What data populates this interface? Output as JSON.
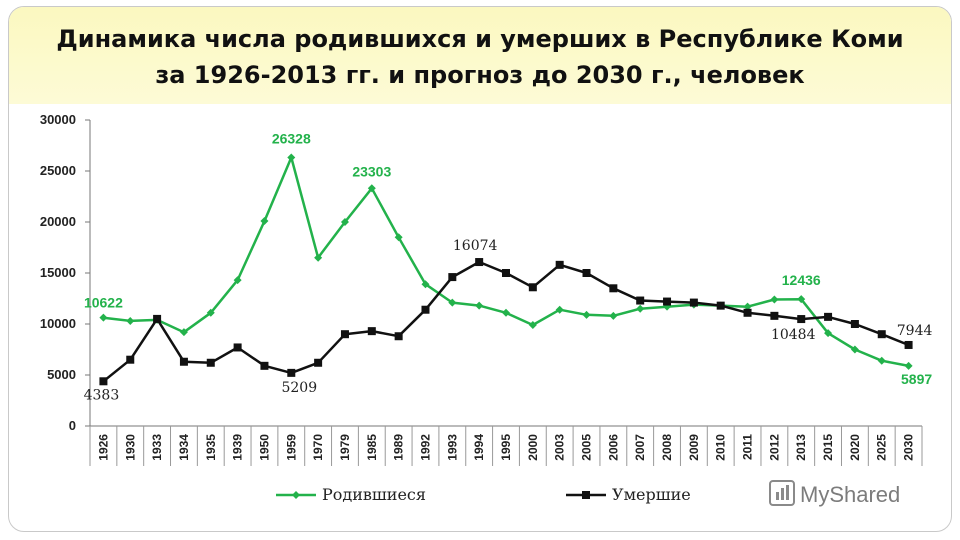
{
  "title": {
    "line1": "Динамика числа родившихся и умерших в Республике Коми",
    "line2": "за 1926-2013 гг. и прогноз до 2030 г.,  человек"
  },
  "watermark": "MyShared",
  "colors": {
    "born": "#23b24b",
    "died": "#111111",
    "title_bg": "#fbf8c0"
  },
  "chart_data": {
    "type": "line",
    "title": "Динамика числа родившихся и умерших в Республике Коми за 1926-2013 гг. и прогноз до 2030 г., человек",
    "categories": [
      "1926",
      "1930",
      "1933",
      "1934",
      "1935",
      "1939",
      "1950",
      "1959",
      "1970",
      "1979",
      "1985",
      "1989",
      "1992",
      "1993",
      "1994",
      "1995",
      "2000",
      "2003",
      "2005",
      "2006",
      "2007",
      "2008",
      "2009",
      "2010",
      "2011",
      "2012",
      "2013",
      "2015",
      "2020",
      "2025",
      "2030"
    ],
    "ylim": [
      0,
      30000
    ],
    "yticks": [
      0,
      5000,
      10000,
      15000,
      20000,
      25000,
      30000
    ],
    "legend_position": "bottom",
    "series": [
      {
        "name": "Родившиеся",
        "color": "#23b24b",
        "marker": "diamond",
        "values": [
          10622,
          10300,
          10400,
          9200,
          11100,
          14300,
          20100,
          26328,
          16500,
          20000,
          23303,
          18500,
          13900,
          12100,
          11800,
          11100,
          9900,
          11400,
          10900,
          10800,
          11500,
          11700,
          11900,
          11800,
          11700,
          12400,
          12436,
          9100,
          7500,
          6400,
          5897
        ]
      },
      {
        "name": "Умершие",
        "color": "#111111",
        "marker": "square",
        "values": [
          4383,
          6500,
          10500,
          6300,
          6200,
          7700,
          5900,
          5209,
          6200,
          9000,
          9300,
          8800,
          11400,
          14600,
          16074,
          15000,
          13600,
          15800,
          15000,
          13500,
          12300,
          12200,
          12100,
          11800,
          11100,
          10800,
          10484,
          10700,
          10000,
          9000,
          7944
        ]
      }
    ],
    "annotations": {
      "born": [
        {
          "index": 0,
          "text": "10622"
        },
        {
          "index": 7,
          "text": "26328"
        },
        {
          "index": 10,
          "text": "23303"
        },
        {
          "index": 26,
          "text": "12436"
        },
        {
          "index": 30,
          "text": "5897"
        }
      ],
      "died": [
        {
          "index": 0,
          "text": "4383"
        },
        {
          "index": 7,
          "text": "5209"
        },
        {
          "index": 14,
          "text": "16074"
        },
        {
          "index": 26,
          "text": "10484"
        },
        {
          "index": 30,
          "text": "7944"
        }
      ]
    }
  }
}
